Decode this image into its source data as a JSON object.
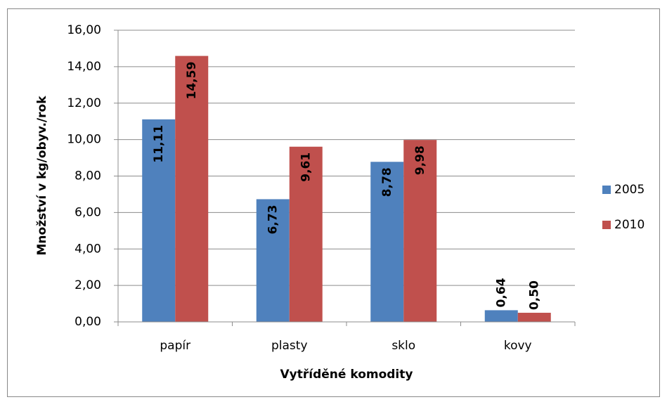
{
  "chart_data": {
    "type": "bar",
    "categories": [
      "papír",
      "plasty",
      "sklo",
      "kovy"
    ],
    "series": [
      {
        "name": "2005",
        "color": "#4f81bd",
        "values": [
          11.11,
          6.73,
          8.78,
          0.64
        ],
        "value_labels": [
          "11,11",
          "6,73",
          "8,78",
          "0,64"
        ]
      },
      {
        "name": "2010",
        "color": "#c0504d",
        "values": [
          14.59,
          9.61,
          9.98,
          0.5
        ],
        "value_labels": [
          "14,59",
          "9,61",
          "9,98",
          "0,50"
        ]
      }
    ],
    "ylim": [
      0,
      16
    ],
    "yticks": [
      {
        "value": 0,
        "label": "0,00"
      },
      {
        "value": 2,
        "label": "2,00"
      },
      {
        "value": 4,
        "label": "4,00"
      },
      {
        "value": 6,
        "label": "6,00"
      },
      {
        "value": 8,
        "label": "8,00"
      },
      {
        "value": 10,
        "label": "10,00"
      },
      {
        "value": 12,
        "label": "12,00"
      },
      {
        "value": 14,
        "label": "14,00"
      },
      {
        "value": 16,
        "label": "16,00"
      }
    ],
    "ylabel": "Množství v kg/obyv./rok",
    "xlabel": "Vytříděné komodity",
    "grid": true,
    "legend": "right"
  }
}
